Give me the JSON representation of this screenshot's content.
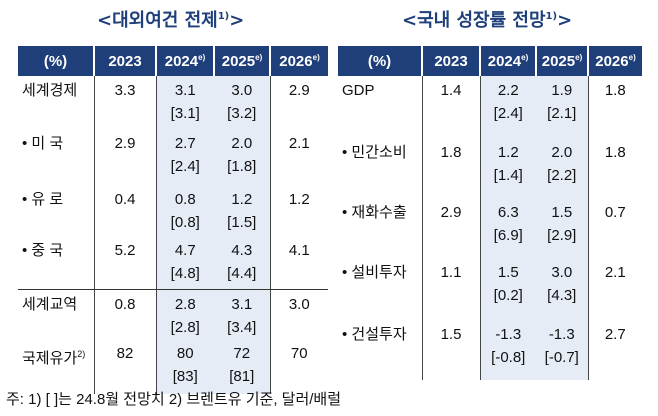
{
  "left": {
    "title": "<대외여건 전제",
    "title_sup": "1)",
    "title_end": ">",
    "headers": [
      "(%)",
      "2023",
      "2024",
      "2025",
      "2026"
    ],
    "header_sups": [
      "",
      "",
      "e)",
      "e)",
      "e)"
    ],
    "rows": [
      {
        "label": "세계경제",
        "v2023": "3.3",
        "v2024": "3.1",
        "v2024b": "[3.1]",
        "v2025": "3.0",
        "v2025b": "[3.2]",
        "v2026": "2.9"
      },
      {
        "label": "• 미 국",
        "v2023": "2.9",
        "v2024": "2.7",
        "v2024b": "[2.4]",
        "v2025": "2.0",
        "v2025b": "[1.8]",
        "v2026": "2.1"
      },
      {
        "label": "• 유 로",
        "v2023": "0.4",
        "v2024": "0.8",
        "v2024b": "[0.8]",
        "v2025": "1.2",
        "v2025b": "[1.5]",
        "v2026": "1.2"
      },
      {
        "label": "• 중 국",
        "v2023": "5.2",
        "v2024": "4.7",
        "v2024b": "[4.8]",
        "v2025": "4.3",
        "v2025b": "[4.4]",
        "v2026": "4.1"
      },
      {
        "label": "세계교역",
        "v2023": "0.8",
        "v2024": "2.8",
        "v2024b": "[2.8]",
        "v2025": "3.1",
        "v2025b": "[3.4]",
        "v2026": "3.0"
      },
      {
        "label": "국제유가",
        "label_sup": "2)",
        "v2023": "82",
        "v2024": "80",
        "v2024b": "[83]",
        "v2025": "72",
        "v2025b": "[81]",
        "v2026": "70"
      }
    ]
  },
  "right": {
    "title": "<국내 성장률 전망",
    "title_sup": "1)",
    "title_end": ">",
    "headers": [
      "(%)",
      "2023",
      "2024",
      "2025",
      "2026"
    ],
    "header_sups": [
      "",
      "",
      "e)",
      "e)",
      "e)"
    ],
    "rows": [
      {
        "label": "GDP",
        "v2023": "1.4",
        "v2024": "2.2",
        "v2024b": "[2.4]",
        "v2025": "1.9",
        "v2025b": "[2.1]",
        "v2026": "1.8"
      },
      {
        "label": "• 민간소비",
        "v2023": "1.8",
        "v2024": "1.2",
        "v2024b": "[1.4]",
        "v2025": "2.0",
        "v2025b": "[2.2]",
        "v2026": "1.8"
      },
      {
        "label": "• 재화수출",
        "v2023": "2.9",
        "v2024": "6.3",
        "v2024b": "[6.9]",
        "v2025": "1.5",
        "v2025b": "[2.9]",
        "v2026": "0.7"
      },
      {
        "label": "• 설비투자",
        "v2023": "1.1",
        "v2024": "1.5",
        "v2024b": "[0.2]",
        "v2025": "3.0",
        "v2025b": "[4.3]",
        "v2026": "2.1"
      },
      {
        "label": "• 건설투자",
        "v2023": "1.5",
        "v2024": "-1.3",
        "v2024b": "[-0.8]",
        "v2025": "-1.3",
        "v2025b": "[-0.7]",
        "v2026": "2.7"
      }
    ]
  },
  "note": "주: 1) [  ]는 24.8월 전망치  2) 브렌트유 기준, 달러/배럴"
}
